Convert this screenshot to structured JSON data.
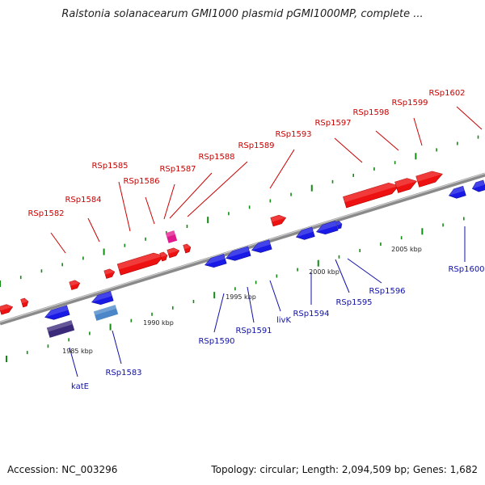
{
  "title": "Ralstonia solanacearum GMI1000 plasmid pGMI1000MP, complete ...",
  "footer": {
    "accession": "Accession: NC_003296",
    "summary": "Topology: circular; Length: 2,094,509 bp; Genes: 1,682"
  },
  "colors": {
    "forward": "#ee1111",
    "reverse": "#1a1ae6",
    "magenta": "#e0198c",
    "steelblue": "#4a86c8",
    "darkpurple": "#3b2a7a",
    "backbone": "#8a8a8a",
    "ticks": "#128c12",
    "forward_label": "#cc0000",
    "reverse_label": "#1010aa"
  },
  "scale": {
    "unit": "kbp",
    "ticks": [
      "1985 kbp",
      "1990 kbp",
      "1995 kbp",
      "2000 kbp",
      "2005 kbp"
    ]
  },
  "genes_forward": [
    "RSp1582",
    "RSp1584",
    "RSp1585",
    "RSp1586",
    "RSp1587",
    "RSp1588",
    "RSp1589",
    "RSp1593",
    "RSp1597",
    "RSp1598",
    "RSp1599",
    "RSp1602"
  ],
  "genes_reverse": [
    "katE",
    "RSp1583",
    "RSp1590",
    "RSp1591",
    "livK",
    "RSp1594",
    "RSp1595",
    "RSp1596",
    "RSp1600"
  ]
}
